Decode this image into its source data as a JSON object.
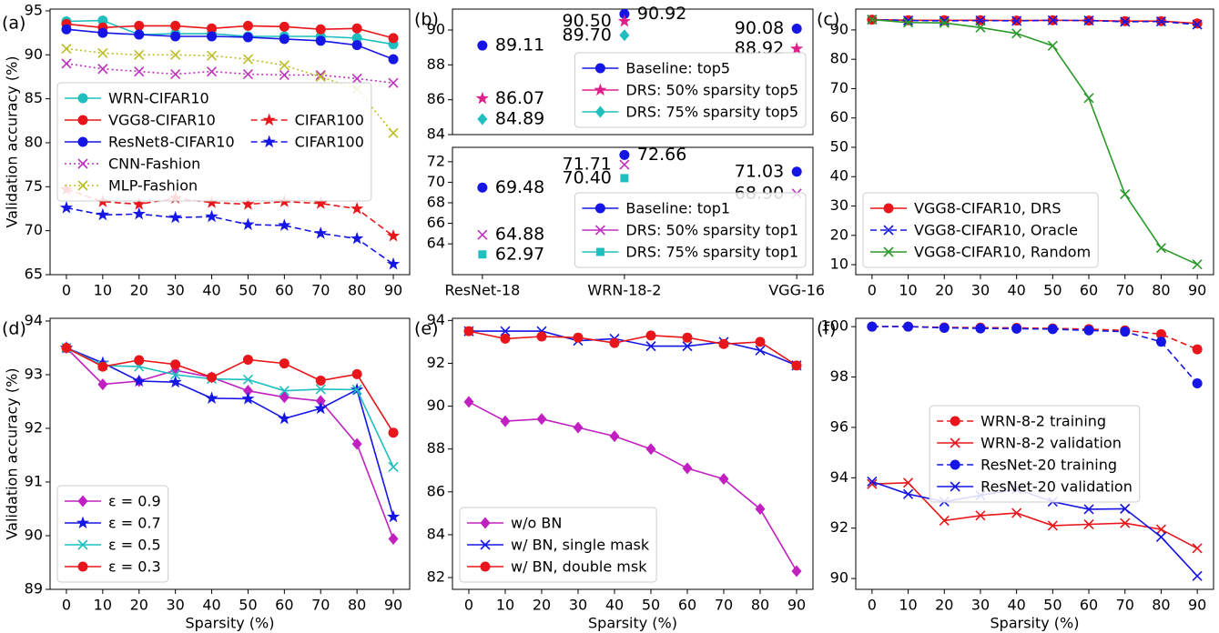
{
  "chart_data": [
    {
      "label": "(a)",
      "type": "line",
      "ylabel": "Validation accuracy (%)",
      "x": [
        0,
        10,
        20,
        30,
        40,
        50,
        60,
        70,
        80,
        90
      ],
      "xlim": [
        -4.5,
        94.5
      ],
      "xticks": [
        0,
        10,
        20,
        30,
        40,
        50,
        60,
        70,
        80,
        90
      ],
      "ylim": [
        65,
        95.2
      ],
      "yticks": [
        65,
        70,
        75,
        80,
        85,
        90,
        95
      ],
      "legend": "center left",
      "series": [
        {
          "name": "WRN-CIFAR10",
          "color": "#1fbfbf",
          "marker": "o",
          "linestyle": "solid",
          "values": [
            93.8,
            93.9,
            92.3,
            92.4,
            92.4,
            92.1,
            92.1,
            92.1,
            91.9,
            91.2
          ]
        },
        {
          "name": "VGG8-CIFAR10",
          "color": "#e8161a",
          "marker": "o",
          "linestyle": "solid",
          "values": [
            93.5,
            93.1,
            93.3,
            93.3,
            93.0,
            93.3,
            93.2,
            92.9,
            93.0,
            91.9
          ]
        },
        {
          "name": "ResNet8-CIFAR10",
          "color": "#1515e6",
          "marker": "o",
          "linestyle": "solid",
          "values": [
            92.9,
            92.5,
            92.3,
            92.1,
            92.1,
            92.0,
            91.8,
            91.6,
            91.1,
            89.5
          ]
        },
        {
          "name": "CNN-Fashion",
          "color": "#c030c0",
          "marker": "x",
          "linestyle": "dotted",
          "values": [
            89.0,
            88.4,
            88.1,
            87.8,
            88.1,
            87.8,
            87.7,
            87.7,
            87.3,
            86.8
          ]
        },
        {
          "name": "MLP-Fashion",
          "color": "#bcbd22",
          "marker": "x",
          "linestyle": "dotted",
          "values": [
            90.7,
            90.2,
            90.0,
            90.0,
            89.9,
            89.5,
            88.8,
            87.5,
            86.1,
            81.1
          ]
        },
        {
          "name": "CIFAR100",
          "color": "#e8161a",
          "marker": "*",
          "linestyle": "dashed",
          "values": [
            74.7,
            73.3,
            73.0,
            73.7,
            73.2,
            73.0,
            73.3,
            73.1,
            72.5,
            69.4
          ]
        },
        {
          "name": "CIFAR100",
          "color": "#1515e6",
          "marker": "*",
          "linestyle": "dashed",
          "values": [
            72.6,
            71.8,
            71.9,
            71.5,
            71.6,
            70.7,
            70.6,
            69.7,
            69.1,
            66.2
          ]
        }
      ]
    },
    {
      "label": "(b)",
      "type": "scatter",
      "ylim": [
        84,
        91.2
      ],
      "yticks": [
        84,
        86,
        88,
        90
      ],
      "legend": "lower right",
      "series": [
        {
          "name": "Baseline: top5",
          "color": "#1515e6",
          "marker": "o",
          "values": [
            89.11,
            90.92,
            90.08
          ],
          "value_labels": [
            "89.11",
            "90.92",
            "90.08"
          ]
        },
        {
          "name": "DRS: 50% sparsity top5",
          "color": "#e0208a",
          "marker": "*",
          "values": [
            86.07,
            90.5,
            88.92
          ],
          "value_labels": [
            "86.07",
            "90.50",
            "88.92"
          ]
        },
        {
          "name": "DRS: 75% sparsity top5",
          "color": "#1fbfbf",
          "marker": "D",
          "values": [
            84.89,
            89.7,
            null
          ],
          "value_labels": [
            "84.89",
            "89.70",
            null
          ]
        }
      ]
    },
    {
      "type": "scatter",
      "categories": [
        "ResNet-18",
        "WRN-18-2",
        "VGG-16"
      ],
      "ylim": [
        61.0,
        73.4
      ],
      "yticks": [
        64,
        66,
        68,
        70,
        72
      ],
      "legend": "lower right",
      "series": [
        {
          "name": "Baseline: top1",
          "color": "#1515e6",
          "marker": "o",
          "values": [
            69.48,
            72.66,
            71.03
          ],
          "value_labels": [
            "69.48",
            "72.66",
            "71.03"
          ]
        },
        {
          "name": "DRS: 50% sparsity top1",
          "color": "#c030c0",
          "marker": "x",
          "values": [
            64.88,
            71.71,
            68.9
          ],
          "value_labels": [
            "64.88",
            "71.71",
            "68.90"
          ]
        },
        {
          "name": "DRS: 75% sparsity top1",
          "color": "#1fbfbf",
          "marker": "s",
          "values": [
            62.97,
            70.4,
            null
          ],
          "value_labels": [
            "62.97",
            "70.40",
            null
          ]
        }
      ]
    },
    {
      "label": "(c)",
      "type": "line",
      "x": [
        0,
        10,
        20,
        30,
        40,
        50,
        60,
        70,
        80,
        90
      ],
      "xlim": [
        -4.5,
        94.5
      ],
      "xticks": [
        0,
        10,
        20,
        30,
        40,
        50,
        60,
        70,
        80,
        90
      ],
      "ylim": [
        6.6,
        97.1
      ],
      "yticks": [
        10,
        20,
        30,
        40,
        50,
        60,
        70,
        80,
        90
      ],
      "legend": "lower left",
      "series": [
        {
          "name": "VGG8-CIFAR10, DRS",
          "color": "#e8161a",
          "marker": "o",
          "linestyle": "solid",
          "values": [
            93.5,
            93.3,
            93.3,
            93.3,
            93.2,
            93.3,
            93.2,
            93.0,
            93.0,
            92.2
          ]
        },
        {
          "name": "VGG8-CIFAR10, Oracle",
          "color": "#1515e6",
          "marker": "x",
          "linestyle": "dashed",
          "values": [
            93.5,
            93.2,
            93.1,
            93.2,
            93.1,
            93.3,
            93.2,
            92.8,
            92.9,
            91.8
          ]
        },
        {
          "name": "VGG8-CIFAR10, Random",
          "color": "#2a9a2a",
          "marker": "x",
          "linestyle": "solid",
          "values": [
            93.5,
            92.5,
            92.4,
            90.8,
            88.8,
            84.6,
            66.8,
            34.0,
            15.7,
            10.1
          ]
        }
      ]
    },
    {
      "label": "(d)",
      "type": "line",
      "ylabel": "Validation accuracy (%)",
      "xlabel": "Sparsity (%)",
      "x": [
        0,
        10,
        20,
        30,
        40,
        50,
        60,
        70,
        80,
        90
      ],
      "xlim": [
        -4.5,
        94.5
      ],
      "xticks": [
        0,
        10,
        20,
        30,
        40,
        50,
        60,
        70,
        80,
        90
      ],
      "ylim": [
        89,
        94.05
      ],
      "yticks": [
        89,
        90,
        91,
        92,
        93,
        94
      ],
      "legend": "lower left",
      "series": [
        {
          "name": "ε = 0.9",
          "color": "#c020c0",
          "marker": "D",
          "linestyle": "solid",
          "values": [
            93.5,
            92.82,
            92.88,
            93.08,
            92.95,
            92.7,
            92.58,
            92.51,
            91.71,
            89.94
          ]
        },
        {
          "name": "ε = 0.7",
          "color": "#1515e6",
          "marker": "*",
          "linestyle": "solid",
          "values": [
            93.5,
            93.22,
            92.88,
            92.86,
            92.56,
            92.55,
            92.18,
            92.37,
            92.72,
            90.35
          ]
        },
        {
          "name": "ε = 0.5",
          "color": "#1fbfbf",
          "marker": "x",
          "linestyle": "solid",
          "values": [
            93.5,
            93.17,
            93.15,
            93.0,
            92.92,
            92.91,
            92.7,
            92.73,
            92.72,
            91.28
          ]
        },
        {
          "name": "ε = 0.3",
          "color": "#e8161a",
          "marker": "o",
          "linestyle": "solid",
          "values": [
            93.5,
            93.15,
            93.27,
            93.19,
            92.95,
            93.28,
            93.21,
            92.89,
            93.01,
            91.92
          ]
        }
      ]
    },
    {
      "label": "(e)",
      "type": "line",
      "xlabel": "Sparsity (%)",
      "x": [
        0,
        10,
        20,
        30,
        40,
        50,
        60,
        70,
        80,
        90
      ],
      "xlim": [
        -4.5,
        94.5
      ],
      "xticks": [
        0,
        10,
        20,
        30,
        40,
        50,
        60,
        70,
        80,
        90
      ],
      "ylim": [
        81.45,
        94.1
      ],
      "yticks": [
        82,
        84,
        86,
        88,
        90,
        92,
        94
      ],
      "legend": "lower left",
      "series": [
        {
          "name": "w/o BN",
          "color": "#c020c0",
          "marker": "D",
          "linestyle": "solid",
          "values": [
            90.2,
            89.3,
            89.4,
            89.0,
            88.6,
            88.0,
            87.1,
            86.6,
            85.2,
            82.3
          ]
        },
        {
          "name": "w/ BN, single mask",
          "color": "#1515e6",
          "marker": "x",
          "linestyle": "solid",
          "values": [
            93.5,
            93.5,
            93.5,
            93.05,
            93.15,
            92.8,
            92.8,
            93.0,
            92.6,
            91.9
          ]
        },
        {
          "name": "w/ BN, double msk",
          "color": "#e8161a",
          "marker": "o",
          "linestyle": "solid",
          "values": [
            93.5,
            93.15,
            93.25,
            93.2,
            92.95,
            93.3,
            93.2,
            92.9,
            93.0,
            91.9
          ]
        }
      ]
    },
    {
      "label": "(f)",
      "type": "line",
      "xlabel": "Sparsity (%)",
      "x": [
        0,
        10,
        20,
        30,
        40,
        50,
        60,
        70,
        80,
        90
      ],
      "xlim": [
        -4.5,
        94.5
      ],
      "xticks": [
        0,
        10,
        20,
        30,
        40,
        50,
        60,
        70,
        80,
        90
      ],
      "ylim": [
        89.57,
        100.33
      ],
      "yticks": [
        90,
        92,
        94,
        96,
        98,
        100
      ],
      "legend": "center",
      "series": [
        {
          "name": "WRN-8-2 training",
          "color": "#e8161a",
          "marker": "o",
          "linestyle": "dashed",
          "values": [
            100,
            100,
            99.97,
            99.96,
            99.95,
            99.93,
            99.9,
            99.85,
            99.7,
            99.1
          ]
        },
        {
          "name": "WRN-8-2 validation",
          "color": "#e8161a",
          "marker": "x",
          "linestyle": "solid",
          "values": [
            93.75,
            93.8,
            92.3,
            92.5,
            92.6,
            92.1,
            92.15,
            92.2,
            91.95,
            91.2
          ]
        },
        {
          "name": "ResNet-20 training",
          "color": "#1515e6",
          "marker": "o",
          "linestyle": "dashed",
          "values": [
            100,
            100,
            99.95,
            99.93,
            99.92,
            99.9,
            99.85,
            99.8,
            99.4,
            97.75
          ]
        },
        {
          "name": "ResNet-20 validation",
          "color": "#1515e6",
          "marker": "x",
          "linestyle": "solid",
          "values": [
            93.85,
            93.35,
            93.05,
            93.3,
            93.55,
            93.05,
            92.75,
            92.77,
            91.65,
            90.1
          ]
        }
      ]
    }
  ]
}
